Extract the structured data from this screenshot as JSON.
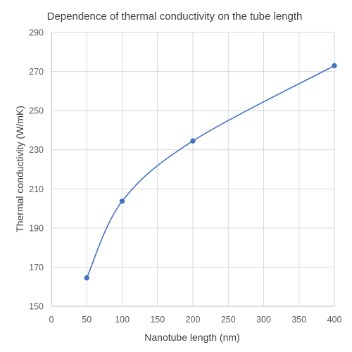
{
  "chart_data": {
    "type": "scatter",
    "title": "Dependence of thermal conductivity on the tube length",
    "xlabel": "Nanotube length (nm)",
    "ylabel": "Thermal conductivity (W/mK)",
    "xlim": [
      0,
      400
    ],
    "ylim": [
      150,
      290
    ],
    "x_ticks": [
      0,
      50,
      100,
      150,
      200,
      250,
      300,
      350,
      400
    ],
    "y_ticks": [
      150,
      170,
      190,
      210,
      230,
      250,
      270,
      290
    ],
    "grid": true,
    "legend": "none",
    "smooth_line": true,
    "series": [
      {
        "color": "#4472c4",
        "points": [
          {
            "x": 50,
            "y": 164.5
          },
          {
            "x": 100,
            "y": 203.7
          },
          {
            "x": 200,
            "y": 234.5
          },
          {
            "x": 400,
            "y": 273.0
          }
        ]
      }
    ]
  }
}
